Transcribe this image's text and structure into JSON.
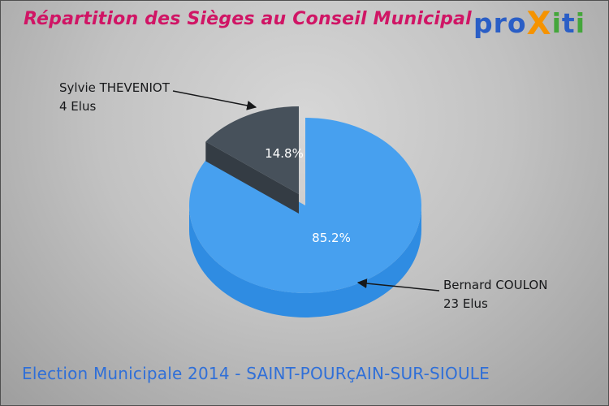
{
  "header": {
    "title": "Répartition des Sièges au Conseil Municipal",
    "title_color": "#d01565"
  },
  "logo": {
    "name": "proXiti",
    "letters": [
      {
        "ch": "p",
        "color": "#2a5ec6"
      },
      {
        "ch": "r",
        "color": "#2a5ec6"
      },
      {
        "ch": "o",
        "color": "#2a5ec6"
      },
      {
        "ch": "X",
        "color": "#f59300"
      },
      {
        "ch": "i",
        "color": "#44a63b"
      },
      {
        "ch": "t",
        "color": "#2a5ec6"
      },
      {
        "ch": "i",
        "color": "#44a63b"
      }
    ]
  },
  "chart_data": {
    "type": "pie",
    "style": "3d-exploded",
    "title": "Répartition des Sièges au Conseil Municipal",
    "total_seats": 27,
    "start_angle_deg": -90,
    "direction": "clockwise",
    "slices": [
      {
        "label": "Bernard COULON",
        "seats_label": "23 Elus",
        "value": 23,
        "pct_label": "85.2%",
        "color": "#47a0ef",
        "side_color": "#2f8ce2",
        "exploded": false
      },
      {
        "label": "Sylvie THEVENIOT",
        "seats_label": "4 Elus",
        "value": 4,
        "pct_label": "14.8%",
        "color": "#47515b",
        "side_color": "#343c44",
        "exploded": true
      }
    ]
  },
  "footer": {
    "text": "Election Municipale 2014 - SAINT-POURçAIN-SUR-SIOULE",
    "color": "#2f6fd8"
  }
}
